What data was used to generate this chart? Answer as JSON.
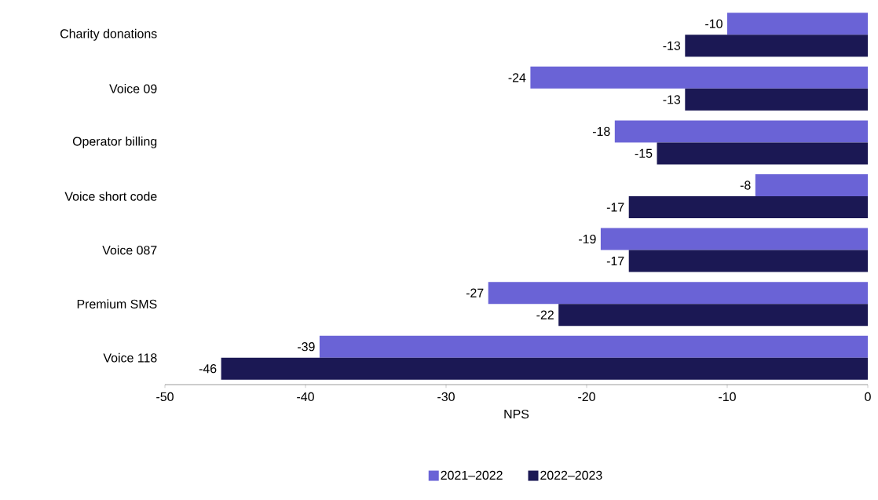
{
  "chart_data": {
    "type": "bar",
    "orientation": "horizontal",
    "xlabel": "NPS",
    "categories": [
      "Charity donations",
      "Voice 09",
      "Operator billing",
      "Voice short code",
      "Voice 087",
      "Premium SMS",
      "Voice 118"
    ],
    "series": [
      {
        "name": "2021–2022",
        "color": "#6a63d6",
        "values": [
          -10,
          -24,
          -18,
          -8,
          -19,
          -27,
          -39
        ]
      },
      {
        "name": "2022–2023",
        "color": "#1b1854",
        "values": [
          -13,
          -13,
          -15,
          -17,
          -17,
          -22,
          -46
        ]
      }
    ],
    "xlim": [
      -50,
      0
    ],
    "xticks": [
      -50,
      -40,
      -30,
      -20,
      -10,
      0
    ],
    "data_labels": true,
    "legend": "bottom",
    "grid": false
  }
}
